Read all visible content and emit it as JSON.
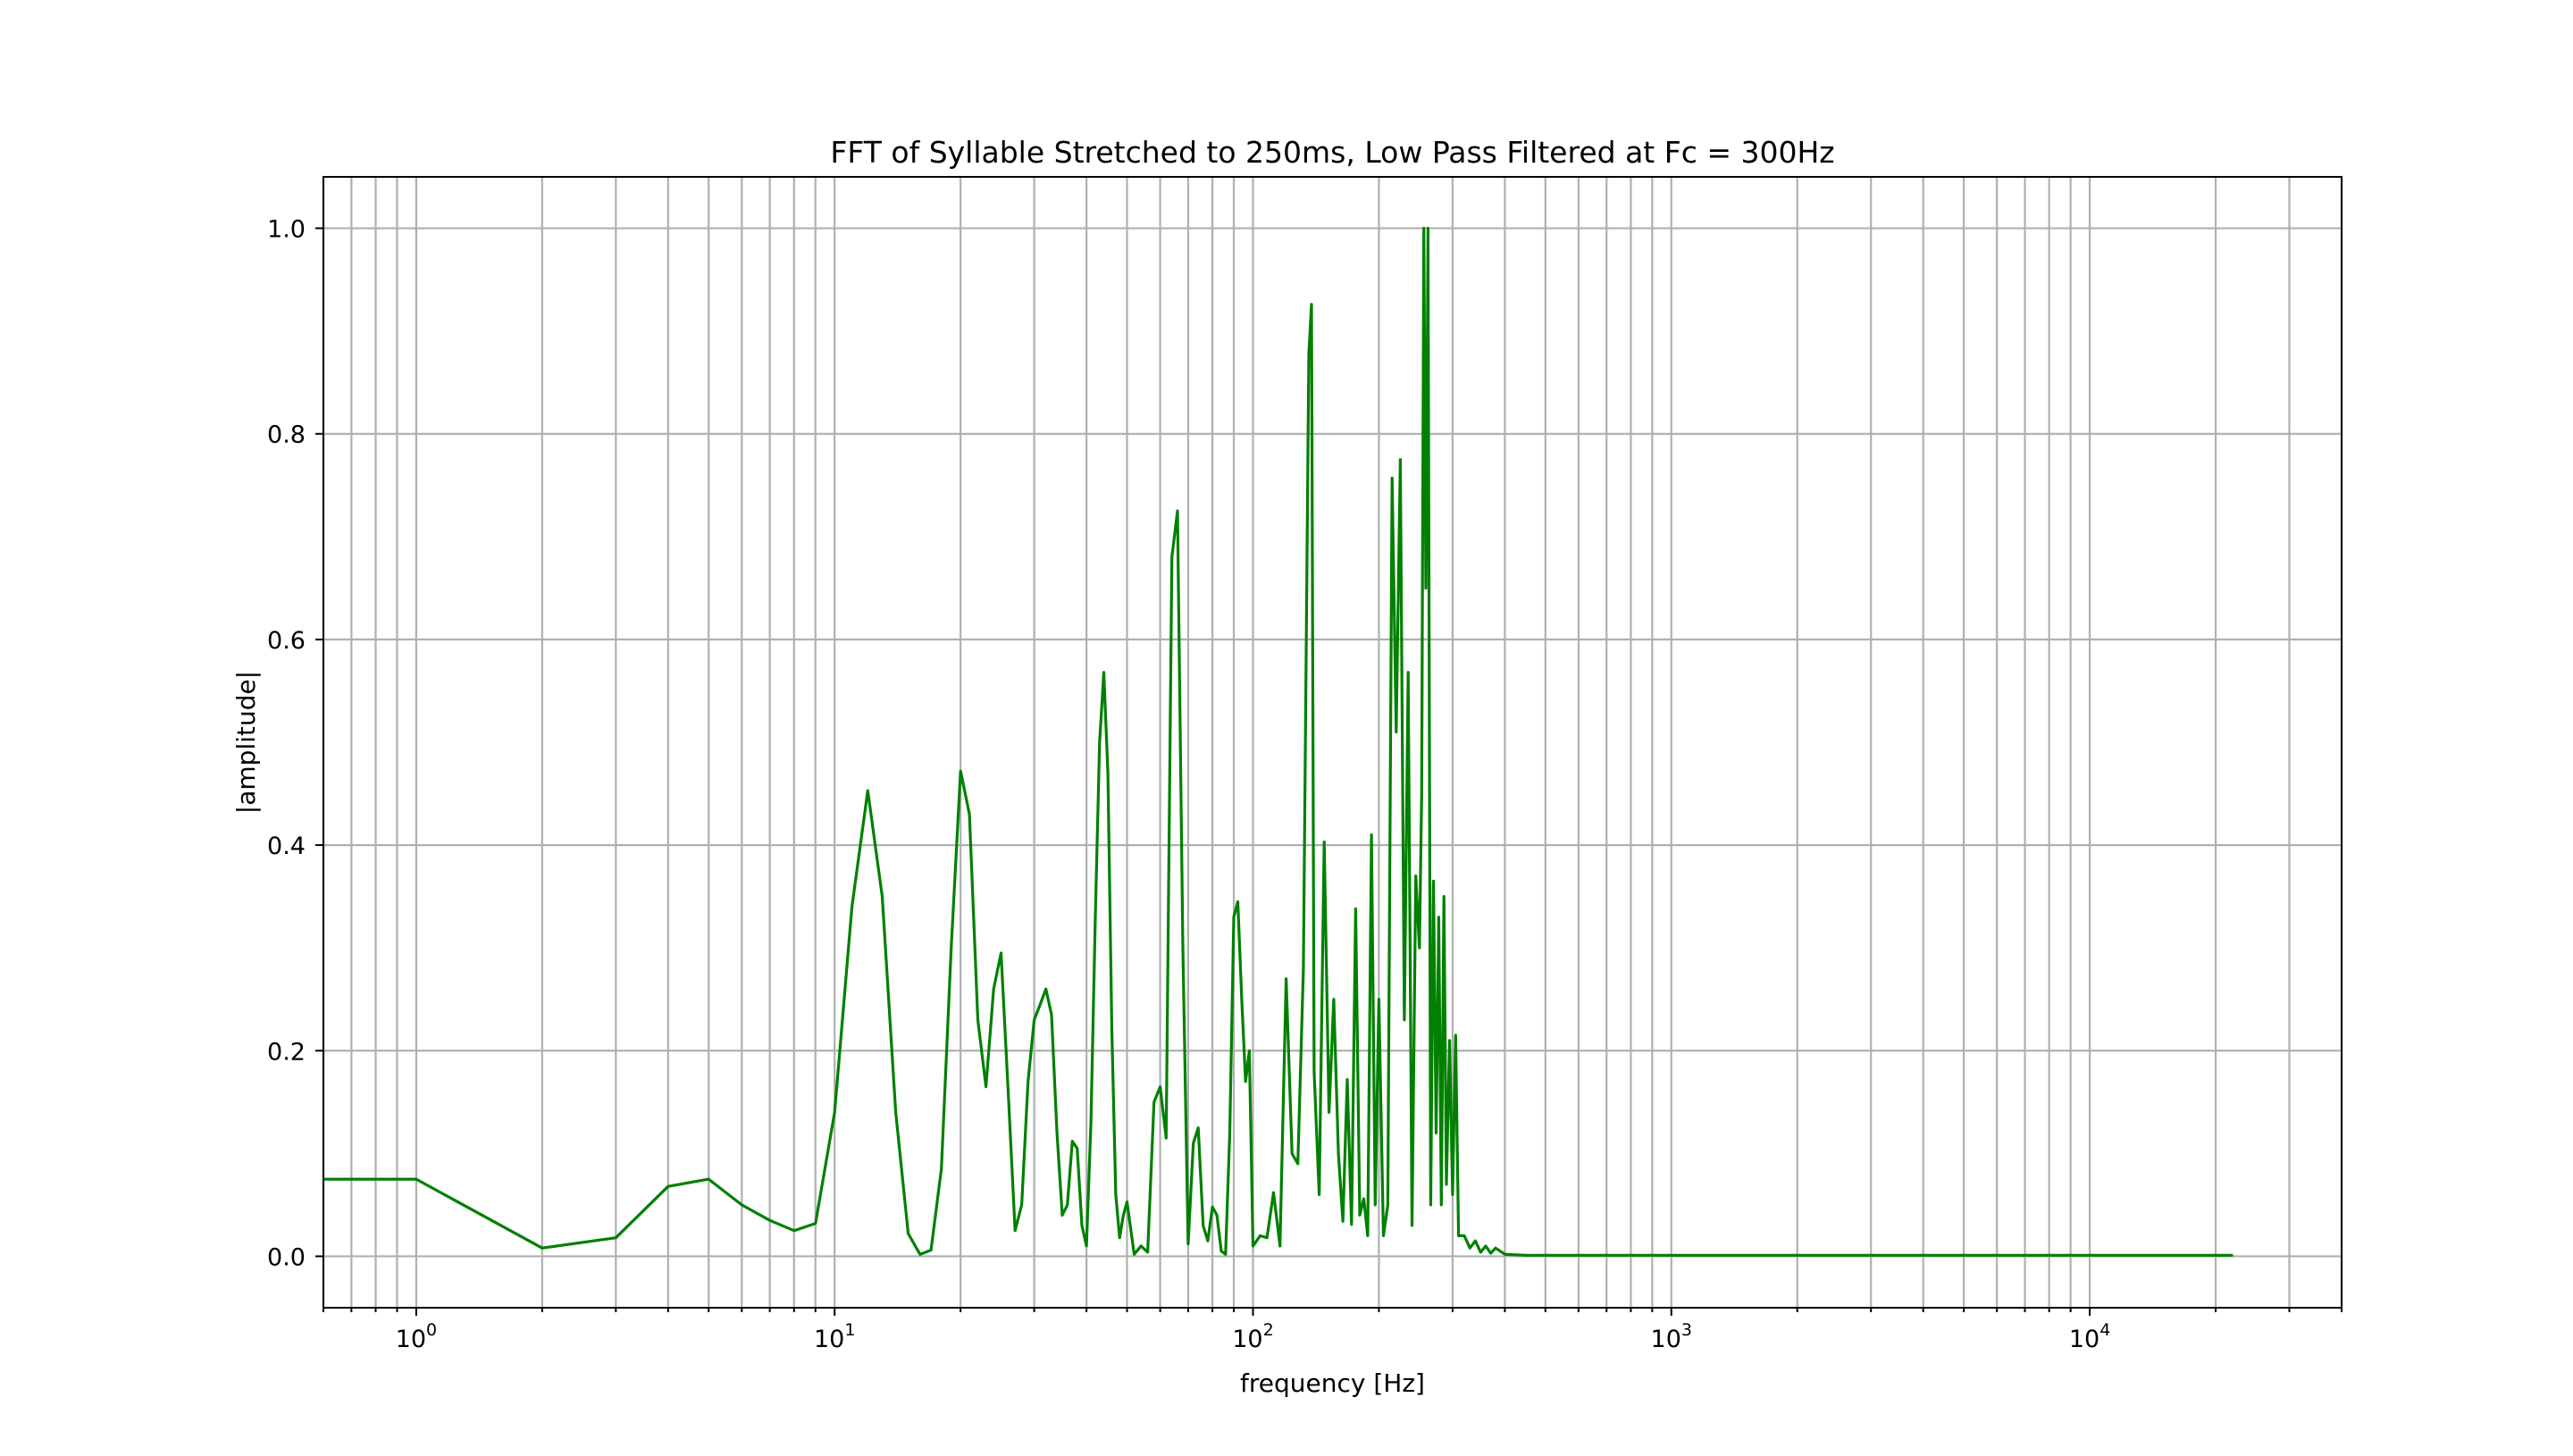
{
  "chart_data": {
    "type": "line",
    "title": "FFT of Syllable Stretched to 250ms, Low Pass Filtered at Fc = 300Hz",
    "xlabel": "frequency [Hz]",
    "ylabel": "|amplitude|",
    "xscale": "log",
    "xlim": [
      0.6,
      40000
    ],
    "ylim": [
      -0.05,
      1.05
    ],
    "grid": true,
    "legend": "none",
    "x_ticks": [
      {
        "base": "10",
        "exp": "0",
        "value": 1
      },
      {
        "base": "10",
        "exp": "1",
        "value": 10
      },
      {
        "base": "10",
        "exp": "2",
        "value": 100
      },
      {
        "base": "10",
        "exp": "3",
        "value": 1000
      },
      {
        "base": "10",
        "exp": "4",
        "value": 10000
      }
    ],
    "y_ticks": [
      {
        "label": "0.0",
        "value": 0.0
      },
      {
        "label": "0.2",
        "value": 0.2
      },
      {
        "label": "0.4",
        "value": 0.4
      },
      {
        "label": "0.6",
        "value": 0.6
      },
      {
        "label": "0.8",
        "value": 0.8
      },
      {
        "label": "1.0",
        "value": 1.0
      }
    ],
    "series": [
      {
        "color": "#008000",
        "x": [
          0.6,
          1,
          2,
          3,
          4,
          5,
          6,
          7,
          8,
          9,
          10,
          11,
          12,
          13,
          14,
          15,
          16,
          17,
          18,
          19,
          20,
          21,
          22,
          23,
          24,
          25,
          26,
          27,
          28,
          29,
          30,
          31,
          32,
          33,
          34,
          35,
          36,
          37,
          38,
          39,
          40,
          41,
          42,
          43,
          44,
          45,
          46,
          47,
          48,
          49,
          50,
          52,
          54,
          56,
          58,
          60,
          62,
          64,
          66,
          68,
          70,
          72,
          74,
          76,
          78,
          80,
          82,
          84,
          86,
          88,
          90,
          92,
          94,
          96,
          98,
          100,
          104,
          108,
          112,
          116,
          120,
          124,
          128,
          132,
          136,
          138,
          140,
          144,
          148,
          152,
          156,
          160,
          164,
          168,
          172,
          176,
          180,
          184,
          188,
          192,
          196,
          200,
          205,
          210,
          215,
          220,
          225,
          230,
          235,
          240,
          245,
          250,
          253,
          256,
          259,
          262,
          266,
          270,
          274,
          278,
          282,
          286,
          290,
          295,
          300,
          305,
          310,
          320,
          330,
          340,
          350,
          360,
          370,
          380,
          400,
          450,
          22000
        ],
        "y": [
          0.075,
          0.075,
          0.008,
          0.018,
          0.068,
          0.075,
          0.05,
          0.035,
          0.025,
          0.032,
          0.14,
          0.34,
          0.453,
          0.35,
          0.14,
          0.022,
          0.002,
          0.006,
          0.085,
          0.3,
          0.472,
          0.43,
          0.23,
          0.165,
          0.26,
          0.295,
          0.16,
          0.025,
          0.05,
          0.17,
          0.23,
          0.245,
          0.26,
          0.235,
          0.12,
          0.04,
          0.05,
          0.112,
          0.105,
          0.03,
          0.01,
          0.13,
          0.33,
          0.5,
          0.568,
          0.47,
          0.22,
          0.06,
          0.018,
          0.04,
          0.053,
          0.002,
          0.01,
          0.004,
          0.15,
          0.165,
          0.115,
          0.68,
          0.725,
          0.3,
          0.012,
          0.11,
          0.125,
          0.03,
          0.015,
          0.048,
          0.04,
          0.005,
          0.002,
          0.12,
          0.33,
          0.345,
          0.25,
          0.17,
          0.2,
          0.01,
          0.02,
          0.018,
          0.062,
          0.01,
          0.27,
          0.1,
          0.09,
          0.28,
          0.878,
          0.926,
          0.18,
          0.06,
          0.403,
          0.14,
          0.25,
          0.1,
          0.034,
          0.172,
          0.031,
          0.338,
          0.04,
          0.056,
          0.02,
          0.41,
          0.05,
          0.25,
          0.02,
          0.05,
          0.757,
          0.51,
          0.775,
          0.23,
          0.568,
          0.03,
          0.37,
          0.3,
          0.45,
          1.0,
          0.65,
          1.0,
          0.05,
          0.365,
          0.12,
          0.33,
          0.05,
          0.35,
          0.07,
          0.21,
          0.06,
          0.215,
          0.02,
          0.02,
          0.008,
          0.015,
          0.004,
          0.01,
          0.003,
          0.008,
          0.002,
          0.001,
          0.001
        ]
      }
    ]
  }
}
